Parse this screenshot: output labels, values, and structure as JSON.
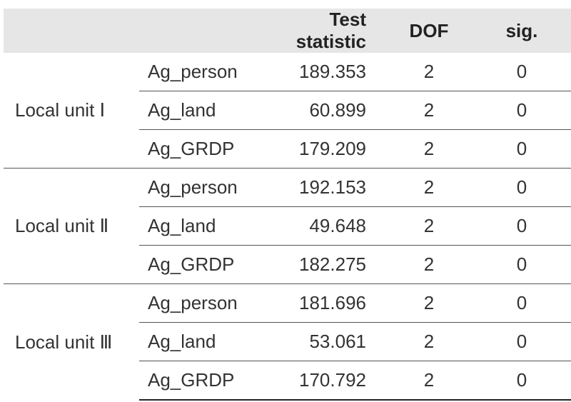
{
  "table": {
    "headers": [
      "",
      "",
      "Test statistic",
      "DOF",
      "sig."
    ],
    "groups": [
      {
        "unit": "Local unit Ⅰ",
        "rows": [
          {
            "variable": "Ag_person",
            "statistic": "189.353",
            "dof": "2",
            "sig": "0"
          },
          {
            "variable": "Ag_land",
            "statistic": "60.899",
            "dof": "2",
            "sig": "0"
          },
          {
            "variable": "Ag_GRDP",
            "statistic": "179.209",
            "dof": "2",
            "sig": "0"
          }
        ]
      },
      {
        "unit": "Local unit Ⅱ",
        "rows": [
          {
            "variable": "Ag_person",
            "statistic": "192.153",
            "dof": "2",
            "sig": "0"
          },
          {
            "variable": "Ag_land",
            "statistic": "49.648",
            "dof": "2",
            "sig": "0"
          },
          {
            "variable": "Ag_GRDP",
            "statistic": "182.275",
            "dof": "2",
            "sig": "0"
          }
        ]
      },
      {
        "unit": "Local unit Ⅲ",
        "rows": [
          {
            "variable": "Ag_person",
            "statistic": "181.696",
            "dof": "2",
            "sig": "0"
          },
          {
            "variable": "Ag_land",
            "statistic": "53.061",
            "dof": "2",
            "sig": "0"
          },
          {
            "variable": "Ag_GRDP",
            "statistic": "170.792",
            "dof": "2",
            "sig": "0"
          }
        ]
      }
    ]
  },
  "colors": {
    "header_bg": "#e6e6e6",
    "rule": "#555555",
    "text": "#333333"
  }
}
